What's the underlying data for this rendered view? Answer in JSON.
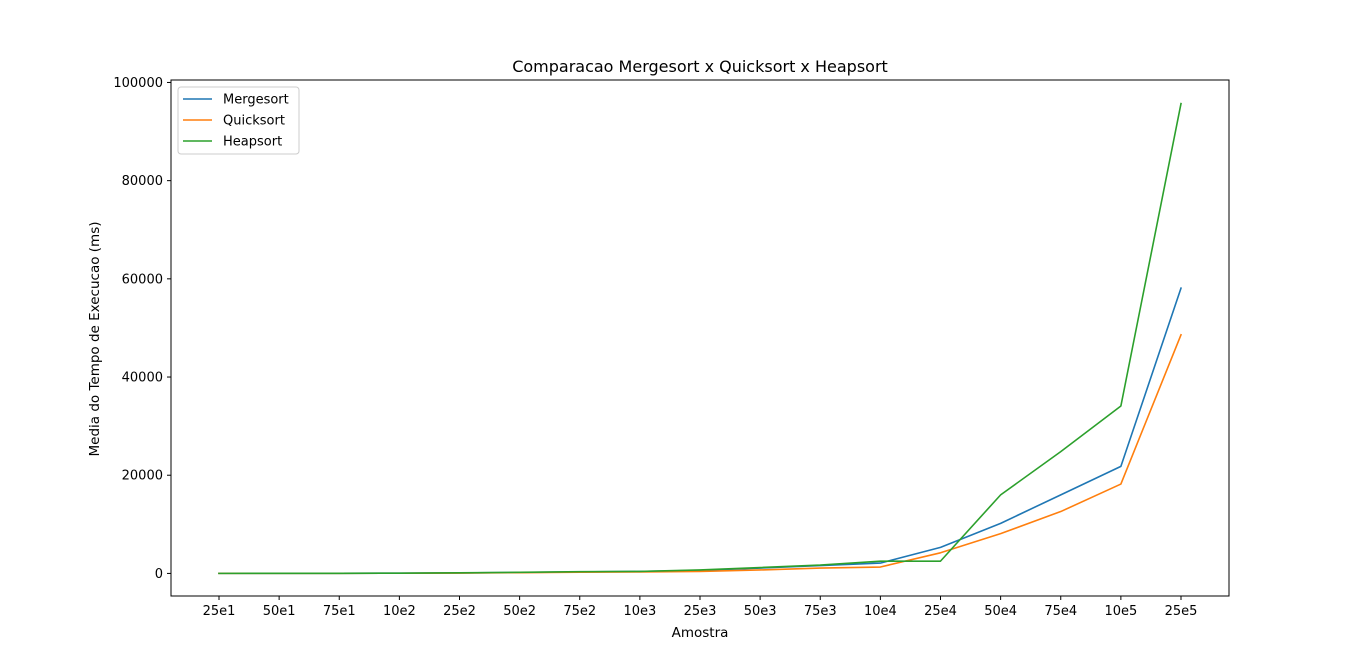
{
  "chart_data": {
    "type": "line",
    "title": "Comparacao Mergesort x Quicksort x Heapsort",
    "xlabel": "Amostra",
    "ylabel": "Media do Tempo de Execucao (ms)",
    "categories": [
      "25e1",
      "50e1",
      "75e1",
      "10e2",
      "25e2",
      "50e2",
      "75e2",
      "10e3",
      "25e3",
      "50e3",
      "75e3",
      "10e4",
      "25e4",
      "50e4",
      "75e4",
      "10e5",
      "25e5"
    ],
    "yticks": [
      0,
      20000,
      40000,
      60000,
      80000,
      100000
    ],
    "ylim": [
      -4600,
      100500
    ],
    "grid": false,
    "legend_position": "top-left",
    "series": [
      {
        "name": "Mergesort",
        "color": "#1f77b4",
        "values": [
          10,
          20,
          30,
          40,
          100,
          200,
          300,
          400,
          600,
          1100,
          1600,
          2100,
          5300,
          10200,
          16000,
          21800,
          58100
        ]
      },
      {
        "name": "Quicksort",
        "color": "#ff7f0e",
        "values": [
          10,
          15,
          25,
          35,
          80,
          150,
          250,
          300,
          400,
          700,
          1100,
          1300,
          4200,
          8100,
          12600,
          18200,
          48600
        ]
      },
      {
        "name": "Heapsort",
        "color": "#2ca02c",
        "values": [
          10,
          20,
          30,
          50,
          120,
          220,
          350,
          400,
          700,
          1200,
          1700,
          2500,
          2500,
          16000,
          24800,
          34100,
          95700
        ]
      }
    ]
  }
}
